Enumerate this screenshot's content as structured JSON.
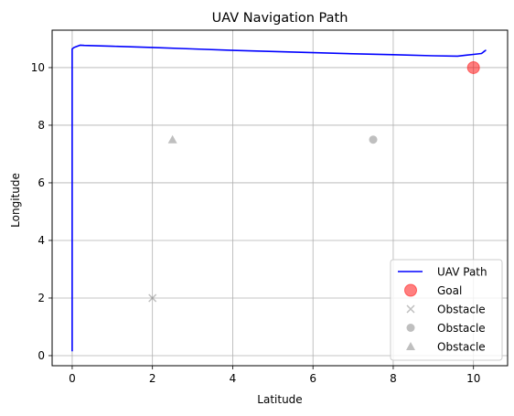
{
  "chart_data": {
    "type": "line",
    "title": "UAV Navigation Path",
    "xlabel": "Latitude",
    "ylabel": "Longitude",
    "xlim": [
      -0.5,
      10.85
    ],
    "ylim": [
      -0.35,
      11.3
    ],
    "xticks": [
      0,
      2,
      4,
      6,
      8,
      10
    ],
    "yticks": [
      0,
      2,
      4,
      6,
      8,
      10
    ],
    "grid": true,
    "legend_position": "lower right",
    "path": {
      "name": "UAV Path",
      "color": "#0000ff",
      "x": [
        0.0,
        0.0,
        0.0,
        0.0,
        0.0,
        0.0,
        0.05,
        0.2,
        0.3,
        1.0,
        2.0,
        3.0,
        4.0,
        5.0,
        6.0,
        7.0,
        8.0,
        9.0,
        9.6,
        9.8,
        10.0,
        10.2,
        10.3,
        10.25
      ],
      "y": [
        0.15,
        2.0,
        4.0,
        6.0,
        8.0,
        10.65,
        10.7,
        10.78,
        10.77,
        10.74,
        10.7,
        10.65,
        10.6,
        10.56,
        10.52,
        10.48,
        10.45,
        10.41,
        10.4,
        10.43,
        10.46,
        10.49,
        10.6,
        10.55
      ]
    },
    "goal": {
      "name": "Goal",
      "x": 10,
      "y": 10,
      "color": "#ff0000"
    },
    "obstacles": [
      {
        "name": "Obstacle",
        "marker": "x",
        "x": 2,
        "y": 2
      },
      {
        "name": "Obstacle",
        "marker": "circle",
        "x": 7.5,
        "y": 7.5
      },
      {
        "name": "Obstacle",
        "marker": "triangle",
        "x": 2.5,
        "y": 7.5
      }
    ],
    "obstacle_color": "#808080"
  }
}
